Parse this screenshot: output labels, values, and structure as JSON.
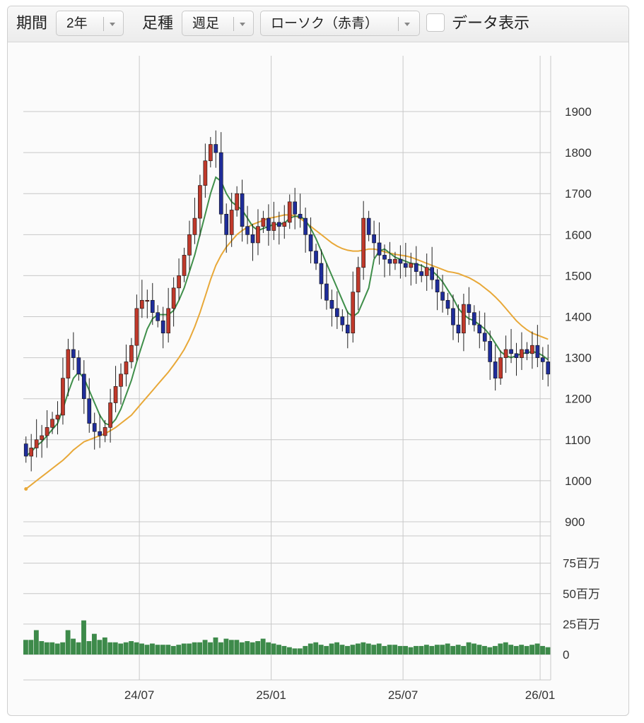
{
  "toolbar": {
    "period_label": "期間",
    "period_value": "2年",
    "candle_label": "足種",
    "candle_value": "週足",
    "style_value": "ローソク（赤青）",
    "data_display_label": "データ表示",
    "data_display_checked": false
  },
  "colors": {
    "up_candle": "#c0392b",
    "down_candle": "#1f2d9a",
    "ma_short": "#3f8f4a",
    "ma_long": "#e8a838",
    "volume": "#3d8a4a",
    "grid": "#c8c8c8"
  },
  "chart_data": {
    "type": "candlestick",
    "x_tick_labels": [
      "24/07",
      "25/01",
      "25/07",
      "26/01"
    ],
    "y_tick_labels": [
      "1900",
      "1800",
      "1700",
      "1600",
      "1500",
      "1400",
      "1300",
      "1200",
      "1100",
      "1000",
      "900"
    ],
    "ylim": [
      900,
      1950
    ],
    "volume_tick_labels": [
      "75百万",
      "50百万",
      "25百万",
      "0"
    ],
    "volume_ylim": [
      0,
      80
    ],
    "grid": true,
    "closes": [
      1060,
      1080,
      1100,
      1110,
      1130,
      1150,
      1160,
      1250,
      1320,
      1300,
      1260,
      1200,
      1140,
      1120,
      1110,
      1130,
      1190,
      1230,
      1260,
      1290,
      1330,
      1420,
      1440,
      1440,
      1410,
      1390,
      1360,
      1420,
      1470,
      1500,
      1550,
      1600,
      1640,
      1720,
      1780,
      1820,
      1800,
      1650,
      1600,
      1660,
      1700,
      1620,
      1600,
      1580,
      1620,
      1640,
      1610,
      1630,
      1620,
      1630,
      1680,
      1650,
      1640,
      1600,
      1560,
      1530,
      1480,
      1440,
      1420,
      1400,
      1380,
      1360,
      1460,
      1520,
      1640,
      1600,
      1580,
      1550,
      1540,
      1530,
      1540,
      1530,
      1520,
      1530,
      1510,
      1500,
      1520,
      1490,
      1460,
      1440,
      1420,
      1380,
      1360,
      1430,
      1410,
      1380,
      1360,
      1340,
      1290,
      1250,
      1300,
      1320,
      1310,
      1300,
      1320,
      1310,
      1330,
      1300,
      1290,
      1260
    ],
    "opens": [
      1090,
      1060,
      1080,
      1100,
      1110,
      1130,
      1150,
      1160,
      1250,
      1320,
      1300,
      1260,
      1200,
      1140,
      1120,
      1110,
      1130,
      1190,
      1230,
      1260,
      1290,
      1330,
      1420,
      1440,
      1440,
      1410,
      1390,
      1360,
      1420,
      1470,
      1500,
      1550,
      1600,
      1640,
      1720,
      1780,
      1820,
      1800,
      1650,
      1600,
      1660,
      1700,
      1620,
      1600,
      1580,
      1620,
      1640,
      1610,
      1630,
      1620,
      1630,
      1680,
      1650,
      1640,
      1600,
      1560,
      1530,
      1480,
      1440,
      1420,
      1400,
      1380,
      1360,
      1460,
      1520,
      1640,
      1600,
      1580,
      1550,
      1540,
      1530,
      1540,
      1530,
      1520,
      1530,
      1510,
      1500,
      1520,
      1490,
      1460,
      1440,
      1420,
      1380,
      1360,
      1430,
      1410,
      1380,
      1360,
      1340,
      1290,
      1250,
      1300,
      1320,
      1310,
      1300,
      1320,
      1310,
      1330,
      1300,
      1290
    ],
    "ma_short": [
      1060,
      1070,
      1085,
      1095,
      1110,
      1125,
      1140,
      1175,
      1215,
      1250,
      1265,
      1250,
      1220,
      1190,
      1160,
      1140,
      1135,
      1150,
      1175,
      1210,
      1245,
      1290,
      1330,
      1370,
      1395,
      1405,
      1405,
      1405,
      1415,
      1440,
      1470,
      1510,
      1550,
      1600,
      1650,
      1700,
      1740,
      1730,
      1700,
      1680,
      1670,
      1660,
      1640,
      1620,
      1610,
      1615,
      1620,
      1625,
      1625,
      1628,
      1640,
      1645,
      1645,
      1635,
      1615,
      1590,
      1560,
      1530,
      1500,
      1470,
      1440,
      1410,
      1400,
      1410,
      1440,
      1470,
      1540,
      1560,
      1565,
      1555,
      1545,
      1540,
      1535,
      1530,
      1528,
      1525,
      1518,
      1512,
      1500,
      1485,
      1465,
      1445,
      1420,
      1405,
      1395,
      1390,
      1380,
      1370,
      1355,
      1335,
      1315,
      1305,
      1300,
      1305,
      1310,
      1312,
      1315,
      1312,
      1305,
      1295
    ],
    "ma_long": [
      980,
      990,
      1000,
      1010,
      1020,
      1030,
      1040,
      1050,
      1062,
      1075,
      1085,
      1095,
      1100,
      1105,
      1110,
      1115,
      1122,
      1130,
      1140,
      1150,
      1160,
      1175,
      1190,
      1205,
      1220,
      1235,
      1250,
      1265,
      1282,
      1300,
      1320,
      1345,
      1375,
      1410,
      1450,
      1490,
      1525,
      1550,
      1570,
      1585,
      1600,
      1610,
      1618,
      1625,
      1630,
      1635,
      1640,
      1642,
      1645,
      1648,
      1648,
      1646,
      1640,
      1630,
      1620,
      1610,
      1600,
      1590,
      1580,
      1572,
      1566,
      1562,
      1560,
      1560,
      1562,
      1565,
      1565,
      1562,
      1558,
      1555,
      1552,
      1550,
      1548,
      1545,
      1540,
      1535,
      1530,
      1525,
      1520,
      1515,
      1510,
      1508,
      1505,
      1500,
      1495,
      1488,
      1480,
      1470,
      1460,
      1448,
      1435,
      1420,
      1405,
      1390,
      1378,
      1368,
      1360,
      1355,
      1350,
      1345
    ],
    "volume": [
      12,
      12,
      20,
      11,
      10,
      10,
      9,
      10,
      20,
      13,
      10,
      28,
      11,
      17,
      12,
      14,
      10,
      10,
      9,
      10,
      11,
      10,
      9,
      8,
      9,
      8,
      8,
      8,
      7,
      8,
      9,
      9,
      10,
      10,
      12,
      10,
      14,
      10,
      13,
      12,
      12,
      10,
      11,
      10,
      11,
      13,
      10,
      9,
      8,
      7,
      6,
      5,
      5,
      7,
      9,
      10,
      8,
      7,
      9,
      10,
      8,
      7,
      8,
      9,
      10,
      9,
      8,
      9,
      7,
      8,
      8,
      7,
      7,
      6,
      7,
      7,
      8,
      7,
      8,
      8,
      9,
      7,
      8,
      7,
      10,
      9,
      8,
      7,
      6,
      7,
      9,
      10,
      8,
      7,
      8,
      7,
      8,
      9,
      7,
      6
    ]
  }
}
